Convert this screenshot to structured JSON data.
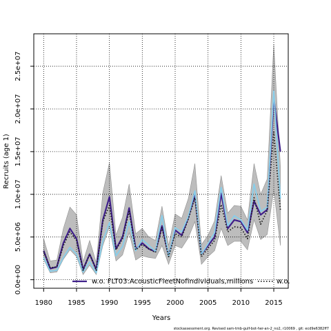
{
  "chart_data": {
    "type": "line",
    "xlabel": "Years",
    "ylabel": "Recruits (age 1)",
    "xlim": [
      1978.5,
      2017.2
    ],
    "ylim": [
      -1000000,
      28800000
    ],
    "xticks": [
      1980,
      1985,
      1990,
      1995,
      2000,
      2005,
      2010,
      2015
    ],
    "xtick_labels": [
      "1980",
      "1985",
      "1990",
      "1995",
      "2000",
      "2005",
      "2010",
      "2015"
    ],
    "yticks": [
      0,
      5000000,
      10000000,
      15000000,
      20000000,
      25000000
    ],
    "ytick_labels": [
      "0.0e+00",
      "5.0e+06",
      "1.0e+07",
      "1.5e+07",
      "2.0e+07",
      "2.5e+07"
    ],
    "grid": true,
    "legend_position": "bottom",
    "x": [
      1980,
      1981,
      1982,
      1983,
      1984,
      1985,
      1986,
      1987,
      1988,
      1989,
      1990,
      1991,
      1992,
      1993,
      1994,
      1995,
      1996,
      1997,
      1998,
      1999,
      2000,
      2001,
      2002,
      2003,
      2004,
      2005,
      2006,
      2007,
      2008,
      2009,
      2010,
      2011,
      2012,
      2013,
      2014,
      2015,
      2016
    ],
    "band": {
      "color": "#bdbdbd",
      "lower": [
        2400000,
        800000,
        900000,
        2400000,
        3500000,
        2700000,
        600000,
        1700000,
        600000,
        4000000,
        6200000,
        2200000,
        2900000,
        5500000,
        2300000,
        2800000,
        2600000,
        2500000,
        4000000,
        1800000,
        4000000,
        3700000,
        4900000,
        6800000,
        1800000,
        2700000,
        3400000,
        6000000,
        4000000,
        4500000,
        4500000,
        3500000,
        7000000,
        4700000,
        5300000,
        10500000,
        4000000
      ],
      "upper": [
        4800000,
        2200000,
        2300000,
        6000000,
        8500000,
        7600000,
        2100000,
        4600000,
        2000000,
        10200000,
        13700000,
        5200000,
        7300000,
        11200000,
        5400000,
        6000000,
        5000000,
        4600000,
        8600000,
        4000000,
        7700000,
        7200000,
        9500000,
        13600000,
        4100000,
        5200000,
        6900000,
        12200000,
        7800000,
        8700000,
        8600000,
        7000000,
        13600000,
        10000000,
        11800000,
        27600000,
        13300000
      ]
    },
    "series": [
      {
        "name": "w.o. FLT03:AcousticFleetNofindividuals,millions",
        "color": "#3f1f8a",
        "style": "solid",
        "width": 2.2,
        "values": [
          3400000,
          1300000,
          1500000,
          4300000,
          6000000,
          4800000,
          1200000,
          3000000,
          1200000,
          7000000,
          9700000,
          3600000,
          5000000,
          8400000,
          3600000,
          4300000,
          3600000,
          3300000,
          6300000,
          2800000,
          5800000,
          5200000,
          7300000,
          9900000,
          3000000,
          4000000,
          5000000,
          10100000,
          6000000,
          7000000,
          6800000,
          5500000,
          9200000,
          7600000,
          8200000,
          21300000,
          15000000
        ]
      },
      {
        "name": "",
        "color": "#87ceeb",
        "style": "solid",
        "width": 1.8,
        "values": [
          2600000,
          1000000,
          1100000,
          2600000,
          3800000,
          3000000,
          900000,
          2100000,
          800000,
          4500000,
          6700000,
          2800000,
          3900000,
          6800000,
          3400000,
          4700000,
          4000000,
          3300000,
          7500000,
          2700000,
          6100000,
          5600000,
          7400000,
          10400000,
          3000000,
          4200000,
          5500000,
          10800000,
          6300000,
          7500000,
          7000000,
          5800000,
          11200000,
          8000000,
          8500000,
          22100000,
          9500000
        ]
      },
      {
        "name": "w.o.",
        "color": "#1a1a1a",
        "style": "dotted",
        "width": 1.8,
        "values": [
          3300000,
          1400000,
          1500000,
          4000000,
          5600000,
          4600000,
          1100000,
          3000000,
          1100000,
          6800000,
          8700000,
          3500000,
          4800000,
          8000000,
          3500000,
          4100000,
          3600000,
          3200000,
          6100000,
          2700000,
          5400000,
          5000000,
          7100000,
          9600000,
          2700000,
          3700000,
          4600000,
          8800000,
          5600000,
          6200000,
          6100000,
          4800000,
          9600000,
          6500000,
          8100000,
          17300000,
          8200000
        ]
      }
    ]
  },
  "footer": "stockassessment.org. Revised  sam-tmb-gulf-bot-her-an-2_no2, r10069 ,  git:  ecd9e6382ff7"
}
